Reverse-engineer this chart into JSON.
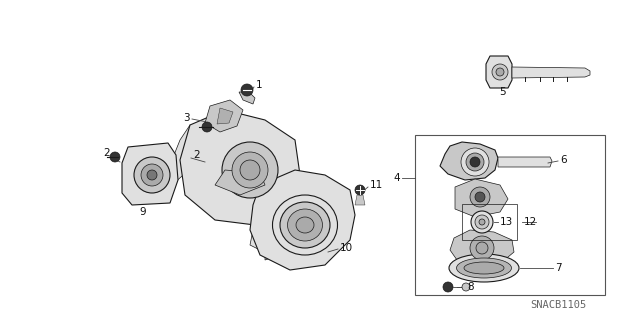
{
  "bg_color": "#ffffff",
  "diagram_id": "SNACB1105",
  "fig_width": 6.4,
  "fig_height": 3.19,
  "dpi": 100,
  "label_fontsize": 7.5,
  "diagram_id_fontsize": 7.5,
  "line_color": "#1a1a1a",
  "text_color": "#111111",
  "lw_thin": 0.5,
  "lw_med": 0.8,
  "lw_thick": 1.2
}
